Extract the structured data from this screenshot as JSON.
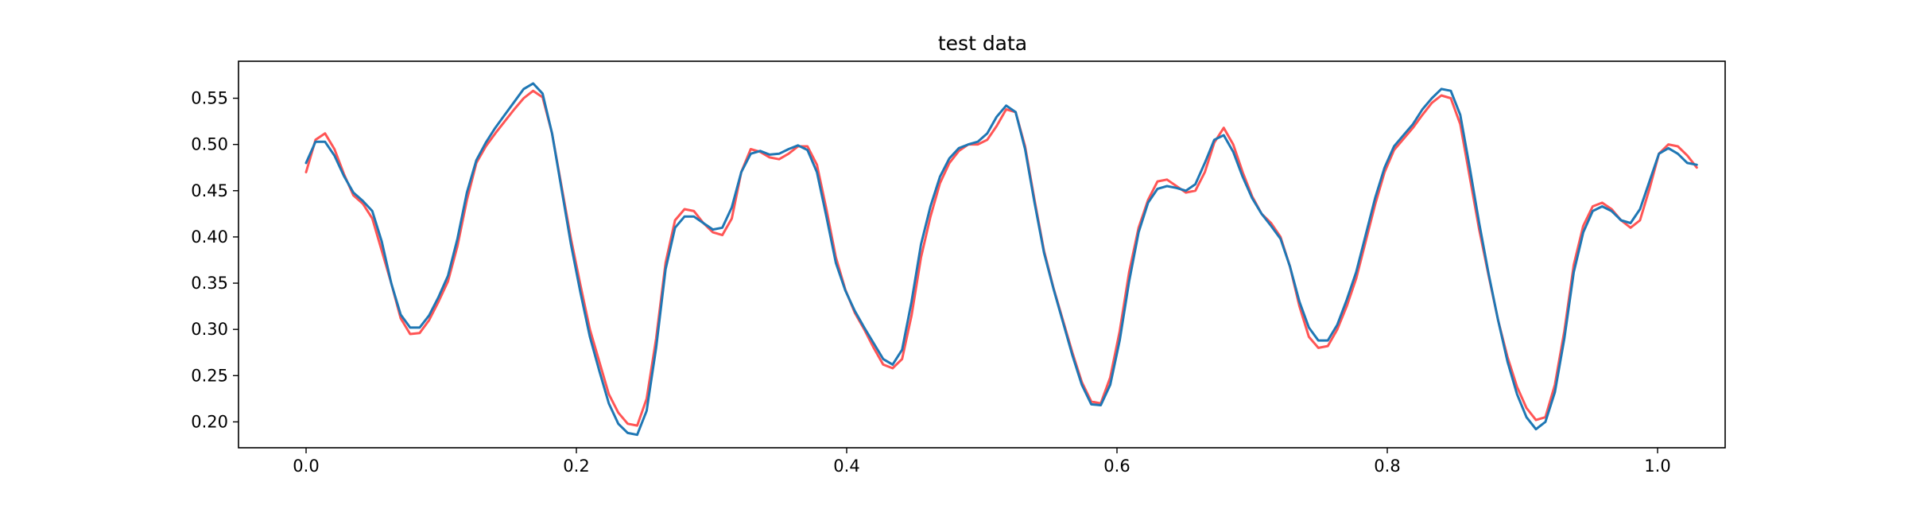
{
  "chart_data": {
    "type": "line",
    "title": "test data",
    "xlabel": "",
    "ylabel": "",
    "xlim": [
      -0.05,
      1.05
    ],
    "ylim": [
      0.172,
      0.59
    ],
    "x_ticks": [
      0.0,
      0.2,
      0.4,
      0.6,
      0.8,
      1.0
    ],
    "x_tick_labels": [
      "0.0",
      "0.2",
      "0.4",
      "0.6",
      "0.8",
      "1.0"
    ],
    "y_ticks": [
      0.2,
      0.25,
      0.3,
      0.35,
      0.4,
      0.45,
      0.5,
      0.55
    ],
    "y_tick_labels": [
      "0.20",
      "0.25",
      "0.30",
      "0.35",
      "0.40",
      "0.45",
      "0.50",
      "0.55"
    ],
    "grid": false,
    "legend": "none",
    "series": [
      {
        "color": "#ff5555",
        "points": [
          [
            0.0,
            0.47
          ],
          [
            0.007,
            0.505
          ],
          [
            0.014,
            0.512
          ],
          [
            0.021,
            0.495
          ],
          [
            0.028,
            0.468
          ],
          [
            0.035,
            0.445
          ],
          [
            0.042,
            0.436
          ],
          [
            0.049,
            0.42
          ],
          [
            0.056,
            0.385
          ],
          [
            0.063,
            0.35
          ],
          [
            0.07,
            0.312
          ],
          [
            0.077,
            0.295
          ],
          [
            0.084,
            0.296
          ],
          [
            0.091,
            0.31
          ],
          [
            0.098,
            0.33
          ],
          [
            0.105,
            0.352
          ],
          [
            0.112,
            0.39
          ],
          [
            0.119,
            0.44
          ],
          [
            0.126,
            0.48
          ],
          [
            0.133,
            0.498
          ],
          [
            0.14,
            0.512
          ],
          [
            0.147,
            0.525
          ],
          [
            0.154,
            0.538
          ],
          [
            0.161,
            0.55
          ],
          [
            0.168,
            0.558
          ],
          [
            0.175,
            0.551
          ],
          [
            0.182,
            0.512
          ],
          [
            0.189,
            0.455
          ],
          [
            0.196,
            0.398
          ],
          [
            0.203,
            0.348
          ],
          [
            0.21,
            0.3
          ],
          [
            0.217,
            0.265
          ],
          [
            0.224,
            0.23
          ],
          [
            0.231,
            0.21
          ],
          [
            0.238,
            0.198
          ],
          [
            0.245,
            0.196
          ],
          [
            0.252,
            0.225
          ],
          [
            0.259,
            0.29
          ],
          [
            0.266,
            0.372
          ],
          [
            0.273,
            0.418
          ],
          [
            0.28,
            0.43
          ],
          [
            0.287,
            0.428
          ],
          [
            0.294,
            0.415
          ],
          [
            0.301,
            0.405
          ],
          [
            0.308,
            0.402
          ],
          [
            0.315,
            0.42
          ],
          [
            0.322,
            0.47
          ],
          [
            0.329,
            0.495
          ],
          [
            0.336,
            0.492
          ],
          [
            0.343,
            0.486
          ],
          [
            0.35,
            0.484
          ],
          [
            0.357,
            0.49
          ],
          [
            0.364,
            0.498
          ],
          [
            0.371,
            0.498
          ],
          [
            0.378,
            0.478
          ],
          [
            0.385,
            0.43
          ],
          [
            0.392,
            0.378
          ],
          [
            0.399,
            0.343
          ],
          [
            0.406,
            0.318
          ],
          [
            0.413,
            0.3
          ],
          [
            0.42,
            0.28
          ],
          [
            0.427,
            0.262
          ],
          [
            0.434,
            0.258
          ],
          [
            0.441,
            0.268
          ],
          [
            0.448,
            0.315
          ],
          [
            0.455,
            0.378
          ],
          [
            0.462,
            0.422
          ],
          [
            0.469,
            0.458
          ],
          [
            0.476,
            0.48
          ],
          [
            0.483,
            0.493
          ],
          [
            0.49,
            0.5
          ],
          [
            0.497,
            0.5
          ],
          [
            0.504,
            0.505
          ],
          [
            0.511,
            0.52
          ],
          [
            0.518,
            0.538
          ],
          [
            0.525,
            0.535
          ],
          [
            0.532,
            0.498
          ],
          [
            0.539,
            0.44
          ],
          [
            0.546,
            0.385
          ],
          [
            0.553,
            0.345
          ],
          [
            0.56,
            0.31
          ],
          [
            0.567,
            0.275
          ],
          [
            0.574,
            0.243
          ],
          [
            0.581,
            0.222
          ],
          [
            0.588,
            0.22
          ],
          [
            0.595,
            0.248
          ],
          [
            0.602,
            0.298
          ],
          [
            0.609,
            0.362
          ],
          [
            0.616,
            0.41
          ],
          [
            0.623,
            0.44
          ],
          [
            0.63,
            0.46
          ],
          [
            0.637,
            0.462
          ],
          [
            0.644,
            0.455
          ],
          [
            0.651,
            0.448
          ],
          [
            0.658,
            0.45
          ],
          [
            0.665,
            0.47
          ],
          [
            0.672,
            0.502
          ],
          [
            0.679,
            0.518
          ],
          [
            0.686,
            0.5
          ],
          [
            0.693,
            0.47
          ],
          [
            0.7,
            0.444
          ],
          [
            0.707,
            0.425
          ],
          [
            0.714,
            0.415
          ],
          [
            0.721,
            0.4
          ],
          [
            0.728,
            0.368
          ],
          [
            0.735,
            0.325
          ],
          [
            0.742,
            0.292
          ],
          [
            0.749,
            0.28
          ],
          [
            0.756,
            0.282
          ],
          [
            0.763,
            0.3
          ],
          [
            0.77,
            0.325
          ],
          [
            0.777,
            0.355
          ],
          [
            0.784,
            0.395
          ],
          [
            0.791,
            0.435
          ],
          [
            0.798,
            0.47
          ],
          [
            0.805,
            0.494
          ],
          [
            0.812,
            0.506
          ],
          [
            0.819,
            0.518
          ],
          [
            0.826,
            0.532
          ],
          [
            0.833,
            0.545
          ],
          [
            0.84,
            0.553
          ],
          [
            0.847,
            0.55
          ],
          [
            0.854,
            0.522
          ],
          [
            0.861,
            0.465
          ],
          [
            0.868,
            0.408
          ],
          [
            0.875,
            0.358
          ],
          [
            0.882,
            0.31
          ],
          [
            0.889,
            0.27
          ],
          [
            0.896,
            0.238
          ],
          [
            0.903,
            0.215
          ],
          [
            0.91,
            0.202
          ],
          [
            0.917,
            0.205
          ],
          [
            0.924,
            0.24
          ],
          [
            0.931,
            0.298
          ],
          [
            0.938,
            0.37
          ],
          [
            0.945,
            0.412
          ],
          [
            0.952,
            0.433
          ],
          [
            0.959,
            0.437
          ],
          [
            0.966,
            0.43
          ],
          [
            0.973,
            0.418
          ],
          [
            0.98,
            0.41
          ],
          [
            0.987,
            0.418
          ],
          [
            0.994,
            0.452
          ],
          [
            1.001,
            0.49
          ],
          [
            1.008,
            0.5
          ],
          [
            1.015,
            0.498
          ],
          [
            1.022,
            0.488
          ],
          [
            1.029,
            0.475
          ]
        ]
      },
      {
        "color": "#1f77b4",
        "points": [
          [
            0.0,
            0.48
          ],
          [
            0.007,
            0.503
          ],
          [
            0.014,
            0.503
          ],
          [
            0.021,
            0.488
          ],
          [
            0.028,
            0.466
          ],
          [
            0.035,
            0.448
          ],
          [
            0.042,
            0.439
          ],
          [
            0.049,
            0.428
          ],
          [
            0.056,
            0.395
          ],
          [
            0.063,
            0.35
          ],
          [
            0.07,
            0.316
          ],
          [
            0.077,
            0.302
          ],
          [
            0.084,
            0.302
          ],
          [
            0.091,
            0.315
          ],
          [
            0.098,
            0.335
          ],
          [
            0.105,
            0.358
          ],
          [
            0.112,
            0.398
          ],
          [
            0.119,
            0.448
          ],
          [
            0.126,
            0.483
          ],
          [
            0.133,
            0.502
          ],
          [
            0.14,
            0.518
          ],
          [
            0.147,
            0.532
          ],
          [
            0.154,
            0.546
          ],
          [
            0.161,
            0.56
          ],
          [
            0.168,
            0.566
          ],
          [
            0.175,
            0.555
          ],
          [
            0.182,
            0.512
          ],
          [
            0.189,
            0.452
          ],
          [
            0.196,
            0.392
          ],
          [
            0.203,
            0.34
          ],
          [
            0.21,
            0.292
          ],
          [
            0.217,
            0.255
          ],
          [
            0.224,
            0.22
          ],
          [
            0.231,
            0.198
          ],
          [
            0.238,
            0.188
          ],
          [
            0.245,
            0.186
          ],
          [
            0.252,
            0.212
          ],
          [
            0.259,
            0.28
          ],
          [
            0.266,
            0.365
          ],
          [
            0.273,
            0.41
          ],
          [
            0.28,
            0.422
          ],
          [
            0.287,
            0.422
          ],
          [
            0.294,
            0.415
          ],
          [
            0.301,
            0.408
          ],
          [
            0.308,
            0.41
          ],
          [
            0.315,
            0.432
          ],
          [
            0.322,
            0.47
          ],
          [
            0.329,
            0.49
          ],
          [
            0.336,
            0.493
          ],
          [
            0.343,
            0.489
          ],
          [
            0.35,
            0.49
          ],
          [
            0.357,
            0.495
          ],
          [
            0.364,
            0.499
          ],
          [
            0.371,
            0.494
          ],
          [
            0.378,
            0.47
          ],
          [
            0.385,
            0.422
          ],
          [
            0.392,
            0.372
          ],
          [
            0.399,
            0.342
          ],
          [
            0.406,
            0.32
          ],
          [
            0.413,
            0.302
          ],
          [
            0.42,
            0.285
          ],
          [
            0.427,
            0.268
          ],
          [
            0.434,
            0.262
          ],
          [
            0.441,
            0.278
          ],
          [
            0.448,
            0.33
          ],
          [
            0.455,
            0.392
          ],
          [
            0.462,
            0.433
          ],
          [
            0.469,
            0.465
          ],
          [
            0.476,
            0.485
          ],
          [
            0.483,
            0.496
          ],
          [
            0.49,
            0.5
          ],
          [
            0.497,
            0.503
          ],
          [
            0.504,
            0.512
          ],
          [
            0.511,
            0.53
          ],
          [
            0.518,
            0.542
          ],
          [
            0.525,
            0.535
          ],
          [
            0.532,
            0.495
          ],
          [
            0.539,
            0.437
          ],
          [
            0.546,
            0.383
          ],
          [
            0.553,
            0.344
          ],
          [
            0.56,
            0.308
          ],
          [
            0.567,
            0.272
          ],
          [
            0.574,
            0.24
          ],
          [
            0.581,
            0.219
          ],
          [
            0.588,
            0.218
          ],
          [
            0.595,
            0.24
          ],
          [
            0.602,
            0.288
          ],
          [
            0.609,
            0.352
          ],
          [
            0.616,
            0.405
          ],
          [
            0.623,
            0.437
          ],
          [
            0.63,
            0.452
          ],
          [
            0.637,
            0.455
          ],
          [
            0.644,
            0.453
          ],
          [
            0.651,
            0.45
          ],
          [
            0.658,
            0.457
          ],
          [
            0.665,
            0.48
          ],
          [
            0.672,
            0.505
          ],
          [
            0.679,
            0.51
          ],
          [
            0.686,
            0.492
          ],
          [
            0.693,
            0.465
          ],
          [
            0.7,
            0.442
          ],
          [
            0.707,
            0.425
          ],
          [
            0.714,
            0.412
          ],
          [
            0.721,
            0.398
          ],
          [
            0.728,
            0.368
          ],
          [
            0.735,
            0.33
          ],
          [
            0.742,
            0.302
          ],
          [
            0.749,
            0.288
          ],
          [
            0.756,
            0.288
          ],
          [
            0.763,
            0.305
          ],
          [
            0.77,
            0.332
          ],
          [
            0.777,
            0.362
          ],
          [
            0.784,
            0.402
          ],
          [
            0.791,
            0.442
          ],
          [
            0.798,
            0.475
          ],
          [
            0.805,
            0.498
          ],
          [
            0.812,
            0.51
          ],
          [
            0.819,
            0.522
          ],
          [
            0.826,
            0.538
          ],
          [
            0.833,
            0.55
          ],
          [
            0.84,
            0.56
          ],
          [
            0.847,
            0.558
          ],
          [
            0.854,
            0.532
          ],
          [
            0.861,
            0.475
          ],
          [
            0.868,
            0.415
          ],
          [
            0.875,
            0.36
          ],
          [
            0.882,
            0.31
          ],
          [
            0.889,
            0.265
          ],
          [
            0.896,
            0.23
          ],
          [
            0.903,
            0.205
          ],
          [
            0.91,
            0.192
          ],
          [
            0.917,
            0.2
          ],
          [
            0.924,
            0.232
          ],
          [
            0.931,
            0.29
          ],
          [
            0.938,
            0.362
          ],
          [
            0.945,
            0.405
          ],
          [
            0.952,
            0.428
          ],
          [
            0.959,
            0.433
          ],
          [
            0.966,
            0.428
          ],
          [
            0.973,
            0.418
          ],
          [
            0.98,
            0.415
          ],
          [
            0.987,
            0.43
          ],
          [
            0.994,
            0.46
          ],
          [
            1.001,
            0.49
          ],
          [
            1.008,
            0.496
          ],
          [
            1.015,
            0.49
          ],
          [
            1.022,
            0.48
          ],
          [
            1.029,
            0.478
          ]
        ]
      }
    ]
  }
}
